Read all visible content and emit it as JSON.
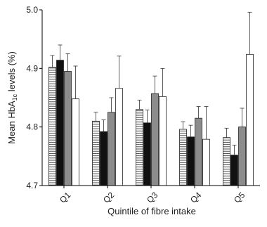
{
  "chart_data": {
    "type": "bar",
    "xlabel": "Quintile of fibre intake",
    "ylabel_main": "Mean HbA",
    "ylabel_sub": "1c",
    "ylabel_end": " levels (%)",
    "categories": [
      "Q1",
      "Q2",
      "Q3",
      "Q4",
      "Q5"
    ],
    "ylim": [
      4.7,
      5.0
    ],
    "yticks": [
      "4.7",
      "4.8",
      "4.9",
      "5.0"
    ],
    "grid": false,
    "series": [
      {
        "style": "horizontal-hatch",
        "fill": "#ffffff",
        "values": [
          4.902,
          4.81,
          4.83,
          4.796,
          4.782
        ],
        "err": [
          0.02,
          0.015,
          0.016,
          0.013,
          0.016
        ]
      },
      {
        "style": "solid-black",
        "fill": "#111111",
        "values": [
          4.914,
          4.792,
          4.807,
          4.783,
          4.752
        ],
        "err": [
          0.026,
          0.02,
          0.022,
          0.02,
          0.017
        ]
      },
      {
        "style": "solid-gray",
        "fill": "#8c8c8c",
        "values": [
          4.895,
          4.825,
          4.857,
          4.815,
          4.8
        ],
        "err": [
          0.03,
          0.025,
          0.03,
          0.02,
          0.032
        ]
      },
      {
        "style": "open-white",
        "fill": "#ffffff",
        "values": [
          4.848,
          4.866,
          4.852,
          4.779,
          4.924
        ],
        "err": [
          0.056,
          0.055,
          0.048,
          0.056,
          0.072
        ]
      }
    ]
  }
}
